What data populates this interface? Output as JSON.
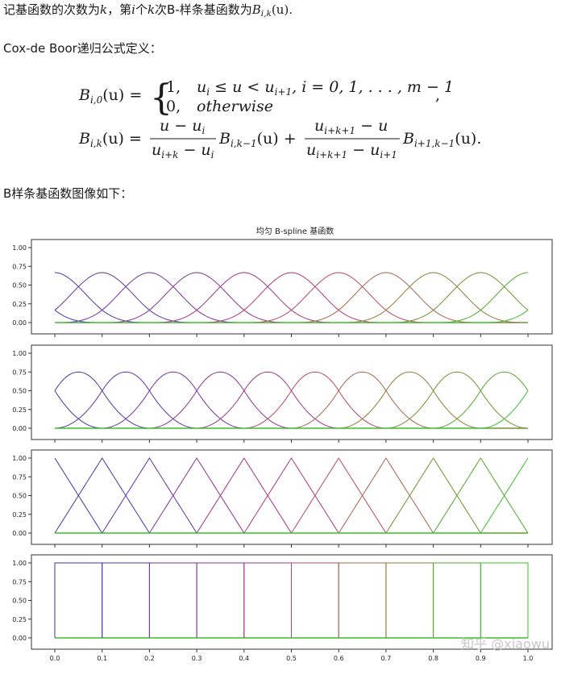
{
  "intro": {
    "part1": "记基函数的次数为",
    "k": "k",
    "part2": "，第",
    "i": "i",
    "part3": "个",
    "part4": "次B-样条基函数为",
    "B": "B",
    "sub": "i,k",
    "arg": "(u)",
    "end": "."
  },
  "formula_heading": "Cox-de Boor递归公式定义：",
  "formula": {
    "line1_lhs": "B",
    "line1_lhs_sub": "i,0",
    "line1_lhs_arg": "(u) =",
    "case1_value": "1,",
    "case1_condition": "u",
    "case1_sub1": "i",
    "case1_mid": " ≤ u < u",
    "case1_sub2": "i+1",
    "case1_tail": ", i = 0, 1, . . . , m − 1",
    "case1_comma": ",",
    "case2_value": "0,",
    "case2_condition": "otherwise",
    "line2_lhs": "B",
    "line2_lhs_sub": "i,k",
    "line2_lhs_arg": "(u) =",
    "frac1_num": "u − u",
    "frac1_num_sub": "i",
    "frac1_den": "u",
    "frac1_den_sub": "i+k",
    "frac1_den_mid": " − u",
    "frac1_den_sub2": "i",
    "term1": "B",
    "term1_sub": "i,k−1",
    "term1_arg": "(u) +",
    "frac2_num": "u",
    "frac2_num_sub": "i+k+1",
    "frac2_num_tail": " − u",
    "frac2_den": "u",
    "frac2_den_sub": "i+k+1",
    "frac2_den_mid": " − u",
    "frac2_den_sub2": "i+1",
    "term2": "B",
    "term2_sub": "i+1,k−1",
    "term2_arg": "(u).",
    "brace": "{"
  },
  "plot_heading": "B样条基函数图像如下：",
  "watermark": "知乎 @xiaowu",
  "chart_data": {
    "type": "line",
    "title": "均匀 B-spline 基函数",
    "knots": [
      0.0,
      0.1,
      0.2,
      0.3,
      0.4,
      0.5,
      0.6,
      0.7,
      0.8,
      0.9,
      1.0
    ],
    "xlim": [
      0.0,
      1.0
    ],
    "ylim": [
      0.0,
      1.0
    ],
    "x_ticks": [
      "0.0",
      "0.1",
      "0.2",
      "0.3",
      "0.4",
      "0.5",
      "0.6",
      "0.7",
      "0.8",
      "0.9",
      "1.0"
    ],
    "y_ticks": [
      "0.00",
      "0.25",
      "0.50",
      "0.75",
      "1.00"
    ],
    "panels": [
      {
        "degree": 3,
        "peak": 0.667,
        "value_at_ends": 0.167
      },
      {
        "degree": 2,
        "peak": 0.75,
        "value_at_ends": 0.5
      },
      {
        "degree": 1,
        "peak": 1.0,
        "value_at_ends": 1.0
      },
      {
        "degree": 0,
        "peak": 1.0,
        "value_at_ends": 1.0
      }
    ],
    "colors": [
      "#3a3aaa",
      "#4b37a6",
      "#5f35a2",
      "#74339c",
      "#8a3295",
      "#9f348a",
      "#b0387a",
      "#b54a62",
      "#a8644a",
      "#8d7c3a",
      "#6f9230",
      "#4faa2a",
      "#3cbf2a"
    ],
    "baseline_color": "#3cbf2a",
    "grid": false,
    "legend": "none"
  }
}
